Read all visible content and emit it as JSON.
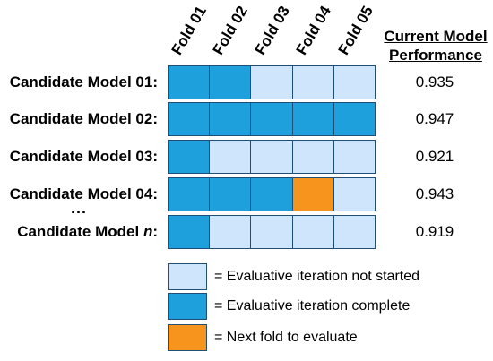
{
  "colors": {
    "not_started": "#cfe5fb",
    "complete": "#1ea0dd",
    "next": "#f7941d",
    "border": "#1f4e79"
  },
  "folds": [
    "Fold 01",
    "Fold 02",
    "Fold 03",
    "Fold 04",
    "Fold 05"
  ],
  "performance_header": {
    "line1": "Current Model",
    "line2": "Performance"
  },
  "models": [
    {
      "label": "Candidate Model 01:",
      "folds": [
        "complete",
        "complete",
        "not_started",
        "not_started",
        "not_started"
      ],
      "performance": "0.935"
    },
    {
      "label": "Candidate Model 02:",
      "folds": [
        "complete",
        "complete",
        "complete",
        "complete",
        "complete"
      ],
      "performance": "0.947"
    },
    {
      "label": "Candidate Model 03:",
      "folds": [
        "complete",
        "not_started",
        "not_started",
        "not_started",
        "not_started"
      ],
      "performance": "0.921"
    },
    {
      "label": "Candidate Model 04:",
      "folds": [
        "complete",
        "complete",
        "complete",
        "next",
        "not_started"
      ],
      "performance": "0.943"
    },
    {
      "label_prefix": "Candidate Model ",
      "label_italic": "n",
      "label_suffix": ":",
      "folds": [
        "complete",
        "not_started",
        "not_started",
        "not_started",
        "not_started"
      ],
      "performance": "0.919"
    }
  ],
  "ellipsis": "...",
  "legend": [
    {
      "state": "not_started",
      "text": "= Evaluative iteration not started"
    },
    {
      "state": "complete",
      "text": "= Evaluative iteration complete"
    },
    {
      "state": "next",
      "text": "= Next fold to evaluate"
    }
  ]
}
